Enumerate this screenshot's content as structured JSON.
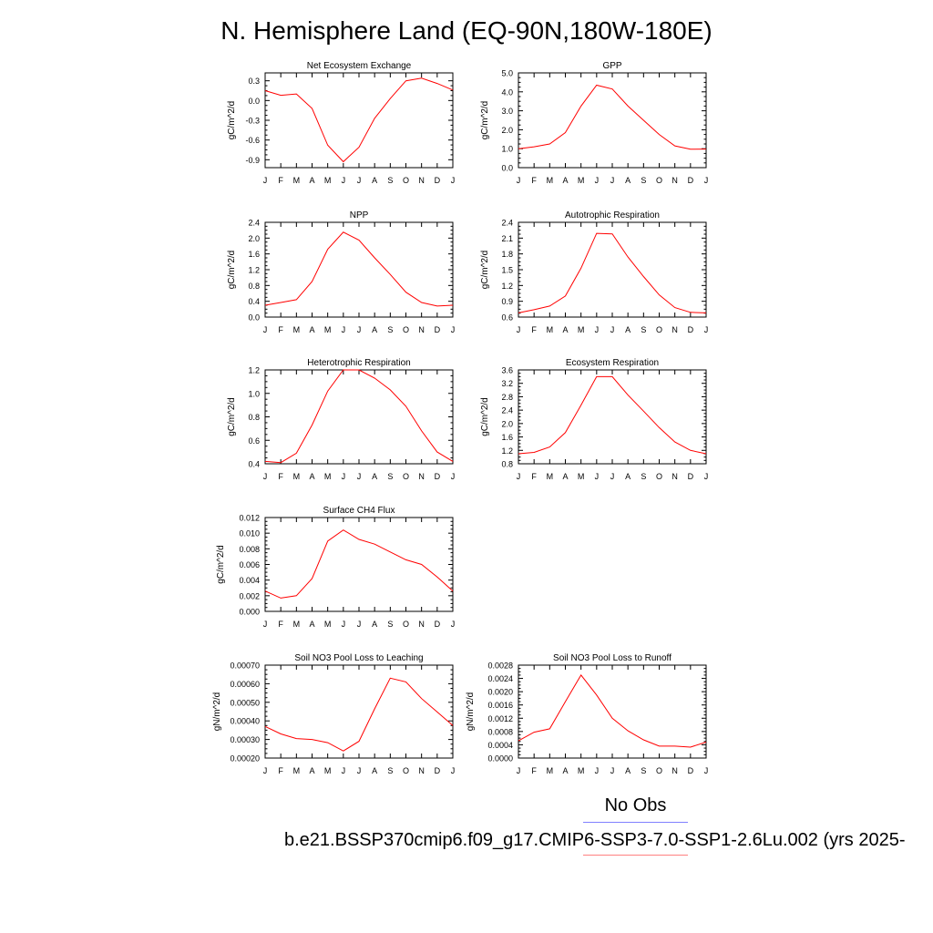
{
  "title": "N. Hemisphere Land (EQ-90N,180W-180E)",
  "legend": {
    "obs_label": "No Obs",
    "case_label": "b.e21.BSSP370cmip6.f09_g17.CMIP6-SSP3-7.0-SSP1-2.6Lu.002 (yrs 2025-"
  },
  "colors": {
    "case_line": "#ff0000",
    "obs_line": "#8080ff",
    "axis": "#000000"
  },
  "chart_data": [
    {
      "type": "line",
      "title": "Net Ecosystem Exchange",
      "ylabel": "gC/m^2/d",
      "categories": [
        "J",
        "F",
        "M",
        "A",
        "M",
        "J",
        "J",
        "A",
        "S",
        "O",
        "N",
        "D",
        "J"
      ],
      "ylim": [
        -1.02,
        0.42
      ],
      "yticks": [
        "0.3",
        "0.0",
        "-0.3",
        "-0.6",
        "-0.9"
      ],
      "series": [
        {
          "values": [
            0.15,
            0.08,
            0.1,
            -0.12,
            -0.68,
            -0.93,
            -0.71,
            -0.27,
            0.03,
            0.3,
            0.34,
            0.26,
            0.16
          ]
        }
      ]
    },
    {
      "type": "line",
      "title": "GPP",
      "ylabel": "gC/m^2/d",
      "categories": [
        "J",
        "F",
        "M",
        "A",
        "M",
        "J",
        "J",
        "A",
        "S",
        "O",
        "N",
        "D",
        "J"
      ],
      "ylim": [
        0.0,
        5.0
      ],
      "yticks": [
        "5.0",
        "4.0",
        "3.0",
        "2.0",
        "1.0",
        "0.0"
      ],
      "series": [
        {
          "values": [
            1.0,
            1.1,
            1.25,
            1.85,
            3.25,
            4.35,
            4.15,
            3.25,
            2.5,
            1.75,
            1.15,
            0.97,
            0.98
          ]
        }
      ]
    },
    {
      "type": "line",
      "title": "NPP",
      "ylabel": "gC/m^2/d",
      "categories": [
        "J",
        "F",
        "M",
        "A",
        "M",
        "J",
        "J",
        "A",
        "S",
        "O",
        "N",
        "D",
        "J"
      ],
      "ylim": [
        0.0,
        2.4
      ],
      "yticks": [
        "2.4",
        "2.0",
        "1.6",
        "1.2",
        "0.8",
        "0.4",
        "0.0"
      ],
      "series": [
        {
          "values": [
            0.3,
            0.37,
            0.44,
            0.9,
            1.72,
            2.15,
            1.95,
            1.5,
            1.08,
            0.63,
            0.37,
            0.28,
            0.3
          ]
        }
      ]
    },
    {
      "type": "line",
      "title": "Autotrophic Respiration",
      "ylabel": "gC/m^2/d",
      "categories": [
        "J",
        "F",
        "M",
        "A",
        "M",
        "J",
        "J",
        "A",
        "S",
        "O",
        "N",
        "D",
        "J"
      ],
      "ylim": [
        0.6,
        2.4
      ],
      "yticks": [
        "2.4",
        "2.1",
        "1.8",
        "1.5",
        "1.2",
        "0.9",
        "0.6"
      ],
      "series": [
        {
          "values": [
            0.68,
            0.74,
            0.81,
            1.0,
            1.53,
            2.19,
            2.18,
            1.74,
            1.37,
            1.02,
            0.78,
            0.69,
            0.68
          ]
        }
      ]
    },
    {
      "type": "line",
      "title": "Heterotrophic Respiration",
      "ylabel": "gC/m^2/d",
      "categories": [
        "J",
        "F",
        "M",
        "A",
        "M",
        "J",
        "J",
        "A",
        "S",
        "O",
        "N",
        "D",
        "J"
      ],
      "ylim": [
        0.4,
        1.2
      ],
      "yticks": [
        "1.2",
        "1.0",
        "0.8",
        "0.6",
        "0.4"
      ],
      "series": [
        {
          "values": [
            0.42,
            0.41,
            0.49,
            0.73,
            1.02,
            1.2,
            1.2,
            1.13,
            1.03,
            0.89,
            0.68,
            0.5,
            0.42
          ]
        }
      ]
    },
    {
      "type": "line",
      "title": "Ecosystem Respiration",
      "ylabel": "gC/m^2/d",
      "categories": [
        "J",
        "F",
        "M",
        "A",
        "M",
        "J",
        "J",
        "A",
        "S",
        "O",
        "N",
        "D",
        "J"
      ],
      "ylim": [
        0.8,
        3.6
      ],
      "yticks": [
        "3.6",
        "3.2",
        "2.8",
        "2.4",
        "2.0",
        "1.6",
        "1.2",
        "0.8"
      ],
      "series": [
        {
          "values": [
            1.1,
            1.14,
            1.3,
            1.73,
            2.55,
            3.4,
            3.4,
            2.85,
            2.37,
            1.88,
            1.45,
            1.2,
            1.1
          ]
        }
      ]
    },
    {
      "type": "line",
      "title": "Surface CH4 Flux",
      "ylabel": "gC/m^2/d",
      "categories": [
        "J",
        "F",
        "M",
        "A",
        "M",
        "J",
        "J",
        "A",
        "S",
        "O",
        "N",
        "D",
        "J"
      ],
      "ylim": [
        0.0,
        0.012
      ],
      "yticks": [
        "0.012",
        "0.010",
        "0.008",
        "0.006",
        "0.004",
        "0.002",
        "0.000"
      ],
      "series": [
        {
          "values": [
            0.0026,
            0.0017,
            0.002,
            0.0042,
            0.009,
            0.0104,
            0.0092,
            0.0086,
            0.0076,
            0.0066,
            0.006,
            0.0044,
            0.0026
          ]
        }
      ]
    },
    {
      "type": "line",
      "title": "Soil NO3 Pool Loss to Leaching",
      "ylabel": "gN/m^2/d",
      "categories": [
        "J",
        "F",
        "M",
        "A",
        "M",
        "J",
        "J",
        "A",
        "S",
        "O",
        "N",
        "D",
        "J"
      ],
      "ylim": [
        0.0002,
        0.0007
      ],
      "yticks": [
        "0.00070",
        "0.00060",
        "0.00050",
        "0.00040",
        "0.00030",
        "0.00020"
      ],
      "series": [
        {
          "values": [
            0.00037,
            0.00033,
            0.000305,
            0.0003,
            0.000283,
            0.000238,
            0.00029,
            0.000465,
            0.00063,
            0.00061,
            0.00052,
            0.000448,
            0.000375
          ]
        }
      ]
    },
    {
      "type": "line",
      "title": "Soil NO3 Pool Loss to Runoff",
      "ylabel": "gN/m^2/d",
      "categories": [
        "J",
        "F",
        "M",
        "A",
        "M",
        "J",
        "J",
        "A",
        "S",
        "O",
        "N",
        "D",
        "J"
      ],
      "ylim": [
        0.0,
        0.0028
      ],
      "yticks": [
        "0.0028",
        "0.0024",
        "0.0020",
        "0.0016",
        "0.0012",
        "0.0008",
        "0.0004",
        "0.0000"
      ],
      "series": [
        {
          "values": [
            0.00052,
            0.00078,
            0.00088,
            0.0017,
            0.0025,
            0.0019,
            0.0012,
            0.00082,
            0.00055,
            0.00036,
            0.00036,
            0.00033,
            0.00048
          ]
        }
      ]
    }
  ]
}
